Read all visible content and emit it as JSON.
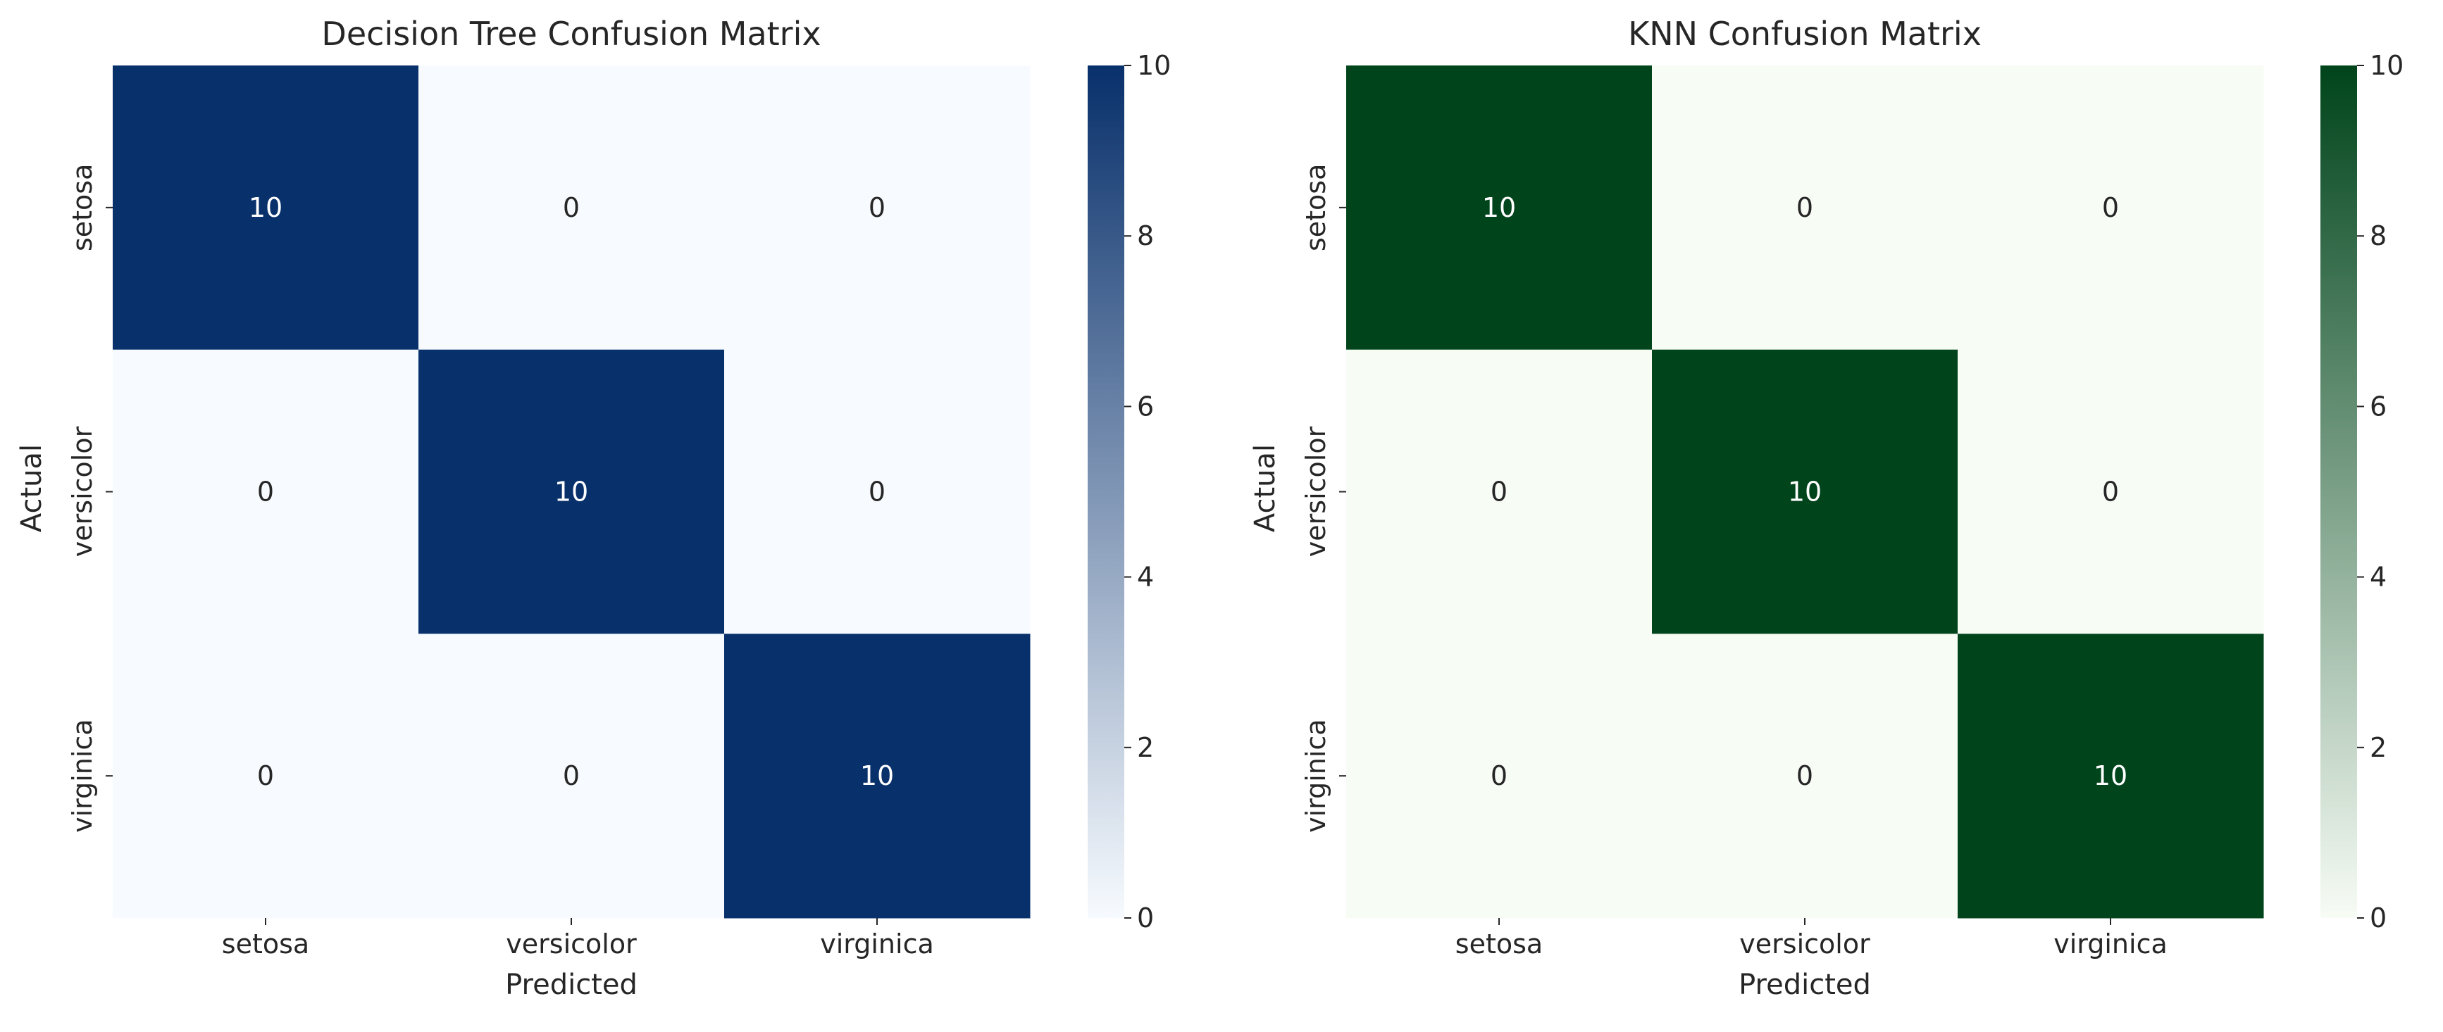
{
  "chart_data": [
    {
      "type": "heatmap",
      "title": "Decision Tree Confusion Matrix",
      "xlabel": "Predicted",
      "ylabel": "Actual",
      "x_categories": [
        "setosa",
        "versicolor",
        "virginica"
      ],
      "y_categories": [
        "setosa",
        "versicolor",
        "virginica"
      ],
      "values": [
        [
          10,
          0,
          0
        ],
        [
          0,
          10,
          0
        ],
        [
          0,
          0,
          10
        ]
      ],
      "colormap": "Blues",
      "color_low": "#f7fbff",
      "color_high": "#08306b",
      "vmin": 0,
      "vmax": 10,
      "colorbar_ticks": [
        "0",
        "2",
        "4",
        "6",
        "8",
        "10"
      ],
      "annotations": true,
      "grid": false
    },
    {
      "type": "heatmap",
      "title": "KNN Confusion Matrix",
      "xlabel": "Predicted",
      "ylabel": "Actual",
      "x_categories": [
        "setosa",
        "versicolor",
        "virginica"
      ],
      "y_categories": [
        "setosa",
        "versicolor",
        "virginica"
      ],
      "values": [
        [
          10,
          0,
          0
        ],
        [
          0,
          10,
          0
        ],
        [
          0,
          0,
          10
        ]
      ],
      "colormap": "Greens",
      "color_low": "#f7fcf5",
      "color_high": "#00441b",
      "vmin": 0,
      "vmax": 10,
      "colorbar_ticks": [
        "0",
        "2",
        "4",
        "6",
        "8",
        "10"
      ],
      "annotations": true,
      "grid": false
    }
  ]
}
